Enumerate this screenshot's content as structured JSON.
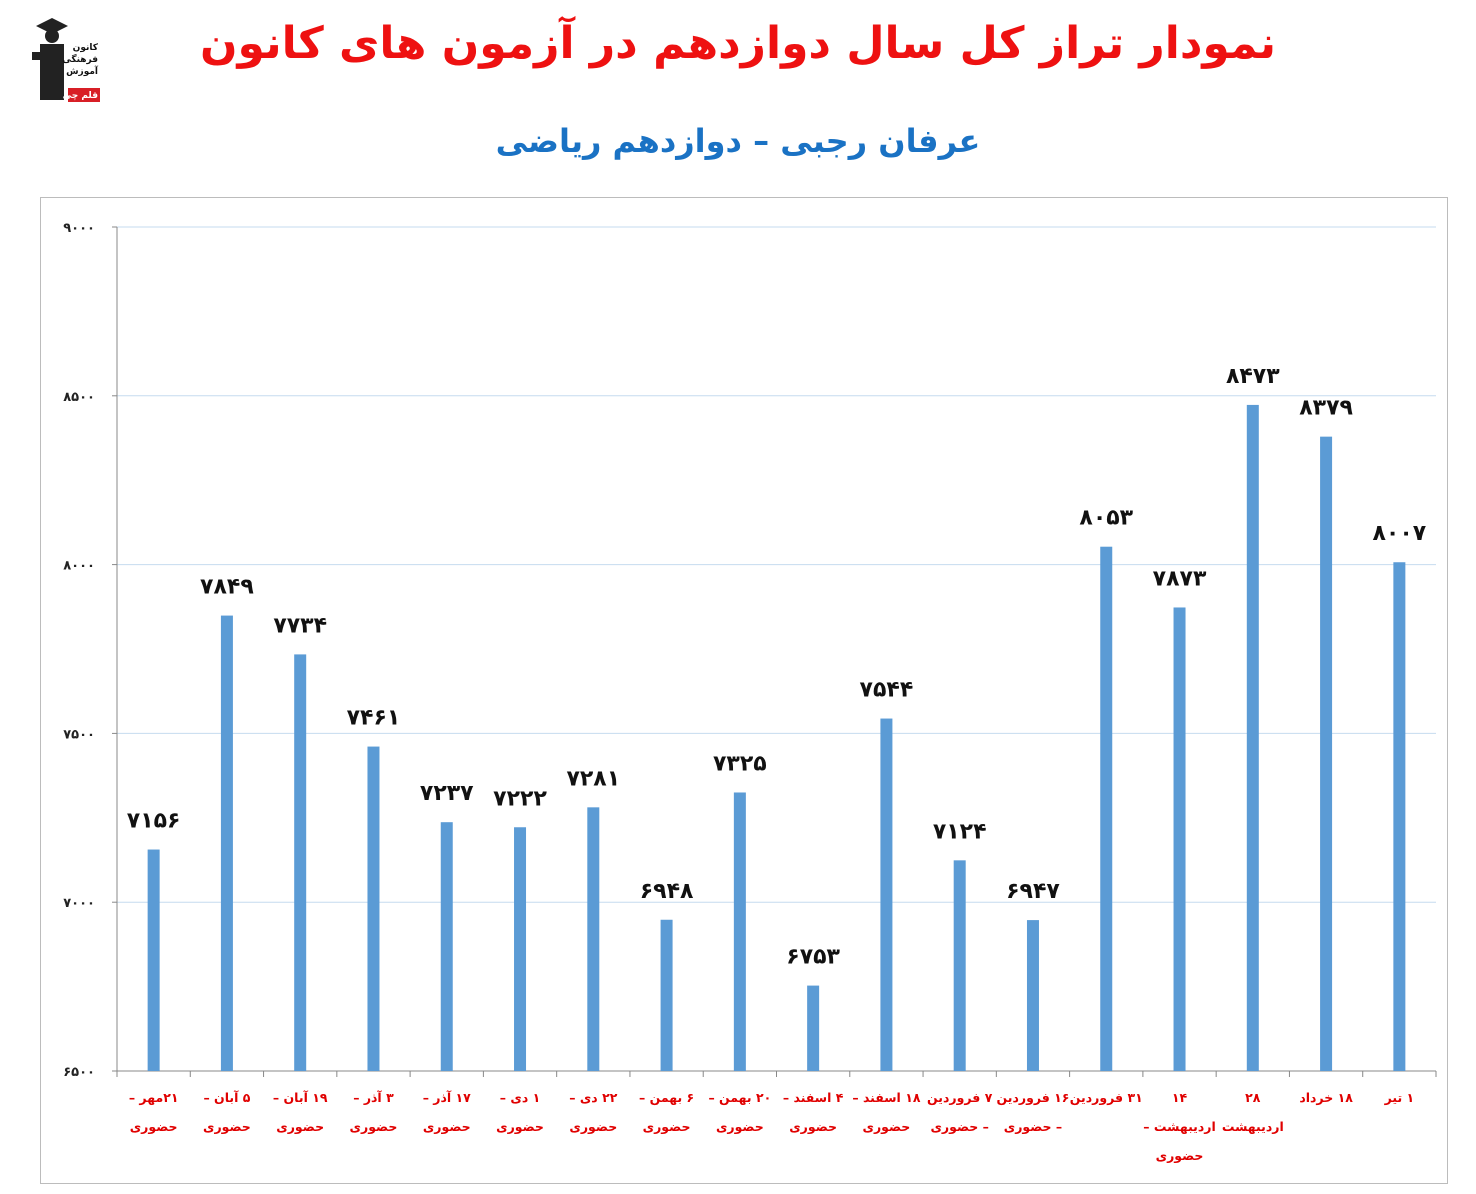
{
  "header": {
    "title": "نمودار تراز کل سال دوازدهم در آزمون های کانون",
    "subtitle": "عرفان رجبی – دوازدهم ریاضی"
  },
  "logo": {
    "lines": [
      "کانون",
      "فرهنگی",
      "آموزش",
      "قلم چی"
    ],
    "accent_color": "#d81f26"
  },
  "colors": {
    "title": "#ee1111",
    "subtitle": "#1a72c4",
    "bar": "#5b9bd5",
    "category_labels": "#e00000",
    "gridline": "#c6dbef"
  },
  "chart_data": {
    "type": "bar",
    "title": "",
    "xlabel": "",
    "ylabel": "",
    "ylim": [
      6500,
      9000
    ],
    "y_ticks": [
      6500,
      7000,
      7500,
      8000,
      8500,
      9000
    ],
    "y_tick_labels": [
      "۶۵۰۰",
      "۷۰۰۰",
      "۷۵۰۰",
      "۸۰۰۰",
      "۸۵۰۰",
      "۹۰۰۰"
    ],
    "grid": true,
    "legend": "none",
    "categories": [
      [
        "۲۱مهر –",
        "حضوری"
      ],
      [
        "۵ آبان –",
        "حضوری"
      ],
      [
        "۱۹ آبان –",
        "حضوری"
      ],
      [
        "۳ آذر –",
        "حضوری"
      ],
      [
        "۱۷ آذر –",
        "حضوری"
      ],
      [
        "۱ دی –",
        "حضوری"
      ],
      [
        "۲۲ دی –",
        "حضوری"
      ],
      [
        "۶ بهمن –",
        "حضوری"
      ],
      [
        "۲۰ بهمن –",
        "حضوری"
      ],
      [
        "۴ اسفند –",
        "حضوری"
      ],
      [
        "۱۸ اسفند –",
        "حضوری"
      ],
      [
        "۷ فروردین",
        "– حضوری"
      ],
      [
        "۱۶ فروردین",
        "– حضوری"
      ],
      [
        "۳۱ فروردین"
      ],
      [
        "۱۴",
        "اردیبهشت –",
        "حضوری"
      ],
      [
        "۲۸",
        "اردیبهشت"
      ],
      [
        "۱۸ خرداد"
      ],
      [
        "۱ تیر"
      ]
    ],
    "values": [
      7156,
      7849,
      7734,
      7461,
      7237,
      7222,
      7281,
      6948,
      7325,
      6753,
      7544,
      7124,
      6947,
      8053,
      7873,
      8473,
      8379,
      8007
    ],
    "value_labels": [
      "۷۱۵۶",
      "۷۸۴۹",
      "۷۷۳۴",
      "۷۴۶۱",
      "۷۲۳۷",
      "۷۲۲۲",
      "۷۲۸۱",
      "۶۹۴۸",
      "۷۳۲۵",
      "۶۷۵۳",
      "۷۵۴۴",
      "۷۱۲۴",
      "۶۹۴۷",
      "۸۰۵۳",
      "۷۸۷۳",
      "۸۴۷۳",
      "۸۳۷۹",
      "۸۰۰۷"
    ]
  }
}
